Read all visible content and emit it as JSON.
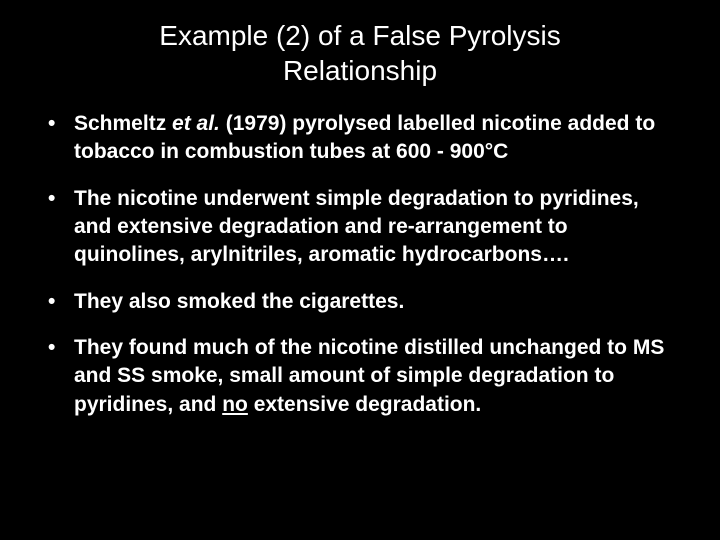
{
  "slide": {
    "background_color": "#000000",
    "text_color": "#ffffff",
    "title_fontsize": 28,
    "title_fontweight": 400,
    "bullet_fontsize": 21,
    "bullet_fontweight": 700,
    "font_family": "Arial",
    "title_line1": "Example (2) of a False Pyrolysis",
    "title_line2": "Relationship",
    "bullets": {
      "b1_pre": "Schmeltz ",
      "b1_italic": "et al.",
      "b1_post": " (1979) pyrolysed labelled nicotine added to tobacco in combustion tubes at 600 - 900°C",
      "b2": "The nicotine underwent simple degradation to pyridines, and extensive degradation and re-arrangement to quinolines, arylnitriles, aromatic hydrocarbons….",
      "b3": "They also smoked the cigarettes.",
      "b4_pre": "They found much of the nicotine distilled unchanged to MS and SS smoke, small amount of simple degradation to pyridines, and ",
      "b4_underline": "no",
      "b4_post": " extensive degradation."
    }
  }
}
